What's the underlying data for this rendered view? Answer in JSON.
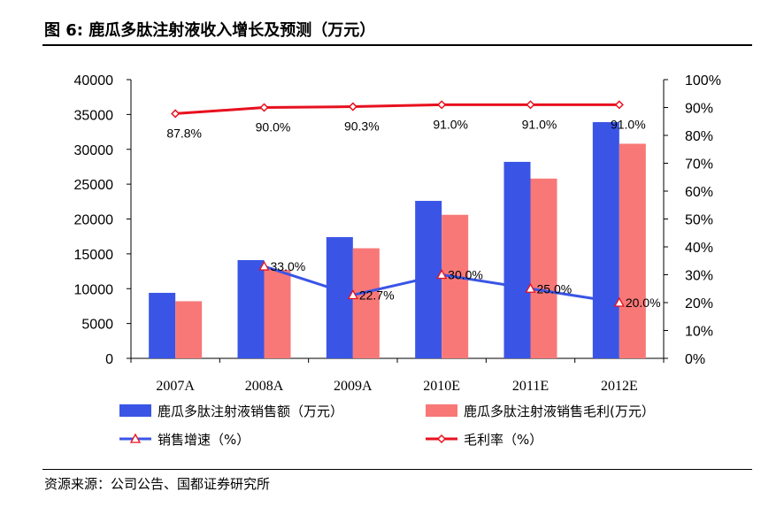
{
  "figure": {
    "title": "图 6:  鹿瓜多肽注射液收入增长及预测（万元）",
    "source": "资源来源：公司公告、国都证券研究所"
  },
  "colors": {
    "sales_bar": "#3a55e6",
    "profit_bar": "#f87878",
    "growth_line": "#3a55e6",
    "growth_marker": "#e8101e",
    "margin_line": "#e8101e"
  },
  "chart_data": {
    "type": "bar",
    "title": "鹿瓜多肽注射液收入增长及预测（万元）",
    "categories": [
      "2007A",
      "2008A",
      "2009A",
      "2010E",
      "2011E",
      "2012E"
    ],
    "y_left": {
      "min": 0,
      "max": 40000,
      "step": 5000,
      "ticks": [
        "0",
        "5000",
        "10000",
        "15000",
        "20000",
        "25000",
        "30000",
        "35000",
        "40000"
      ]
    },
    "y_right": {
      "min": 0,
      "max": 100,
      "step": 10,
      "ticks": [
        "0%",
        "10%",
        "20%",
        "30%",
        "40%",
        "50%",
        "60%",
        "70%",
        "80%",
        "90%",
        "100%"
      ]
    },
    "series": [
      {
        "name": "鹿瓜多肽注射液销售额（万元）",
        "kind": "bar",
        "axis": "left",
        "values": [
          9400,
          14100,
          17400,
          22600,
          28200,
          33900
        ]
      },
      {
        "name": "鹿瓜多肽注射液销售毛利(万元）",
        "kind": "bar",
        "axis": "left",
        "values": [
          8200,
          12700,
          15800,
          20600,
          25800,
          30800
        ]
      },
      {
        "name": "销售增速（%）",
        "kind": "line",
        "axis": "right",
        "values": [
          null,
          33.0,
          22.7,
          30.0,
          25.0,
          20.0
        ],
        "labels": [
          "",
          "33.0%",
          "22.7%",
          "30.0%",
          "25.0%",
          "20.0%"
        ]
      },
      {
        "name": "毛利率（%）",
        "kind": "line",
        "axis": "right",
        "values": [
          87.8,
          90.0,
          90.3,
          91.0,
          91.0,
          91.0
        ],
        "labels": [
          "87.8%",
          "90.0%",
          "90.3%",
          "91.0%",
          "91.0%",
          "91.0%"
        ]
      }
    ],
    "legend": {
      "position": "bottom",
      "items": [
        "鹿瓜多肽注射液销售额（万元）",
        "鹿瓜多肽注射液销售毛利(万元）",
        "销售增速（%）",
        "毛利率（%）"
      ]
    },
    "grid": false
  }
}
